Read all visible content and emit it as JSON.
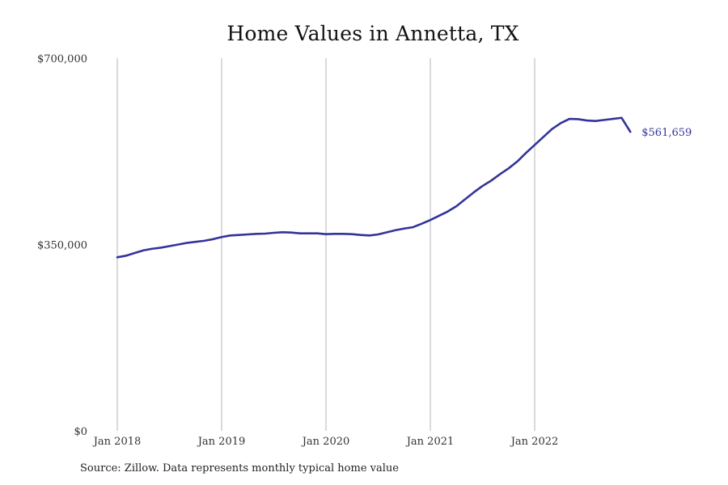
{
  "chart_data": {
    "type": "line",
    "title": "Home Values in Annetta, TX",
    "xlabel": "",
    "ylabel": "",
    "ylim": [
      0,
      700000
    ],
    "y_ticks": [
      0,
      350000,
      700000
    ],
    "y_tick_labels": [
      "$0",
      "$350,000",
      "$700,000"
    ],
    "x_ticks": [
      "2018-01",
      "2019-01",
      "2020-01",
      "2021-01",
      "2022-01"
    ],
    "x_tick_labels": [
      "Jan 2018",
      "Jan 2019",
      "Jan 2020",
      "Jan 2021",
      "Jan 2022"
    ],
    "grid": "vertical",
    "series": [
      {
        "x": [
          "2018-01",
          "2018-02",
          "2018-03",
          "2018-04",
          "2018-05",
          "2018-06",
          "2018-07",
          "2018-08",
          "2018-09",
          "2018-10",
          "2018-11",
          "2018-12",
          "2019-01",
          "2019-02",
          "2019-03",
          "2019-04",
          "2019-05",
          "2019-06",
          "2019-07",
          "2019-08",
          "2019-09",
          "2019-10",
          "2019-11",
          "2019-12",
          "2020-01",
          "2020-02",
          "2020-03",
          "2020-04",
          "2020-05",
          "2020-06",
          "2020-07",
          "2020-08",
          "2020-09",
          "2020-10",
          "2020-11",
          "2020-12",
          "2021-01",
          "2021-02",
          "2021-03",
          "2021-04",
          "2021-05",
          "2021-06",
          "2021-07",
          "2021-08",
          "2021-09",
          "2021-10",
          "2021-11",
          "2021-12",
          "2022-01",
          "2022-02",
          "2022-03",
          "2022-04",
          "2022-05",
          "2022-06",
          "2022-07",
          "2022-08",
          "2022-09",
          "2022-10",
          "2022-11",
          "2022-12"
        ],
        "values": [
          326000,
          329000,
          334000,
          339000,
          342000,
          344000,
          347000,
          350000,
          353000,
          355000,
          357000,
          360000,
          364000,
          367000,
          368000,
          369000,
          370000,
          370500,
          372000,
          373000,
          372500,
          371000,
          371000,
          371000,
          369500,
          370000,
          370000,
          369500,
          368000,
          367000,
          369000,
          373000,
          377000,
          380000,
          382500,
          389000,
          396000,
          404000,
          412000,
          422000,
          435000,
          448000,
          460000,
          470000,
          482000,
          493000,
          506000,
          522000,
          537000,
          552000,
          567000,
          578000,
          586000,
          585500,
          583000,
          582000,
          584000,
          586000,
          588000,
          561659
        ],
        "color": "#33339a"
      }
    ],
    "end_label": "$561,659",
    "source": "Source: Zillow. Data represents monthly typical home value"
  }
}
